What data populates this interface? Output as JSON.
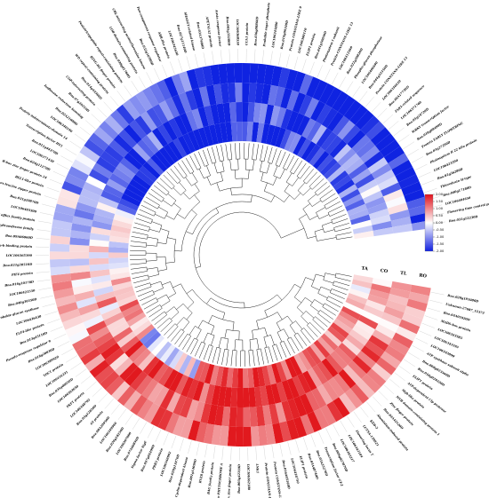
{
  "chart_data": {
    "type": "heatmap",
    "layout": "circular",
    "rings": [
      "TA",
      "CO",
      "TL",
      "RO"
    ],
    "color_scale": {
      "low": "#1020e0",
      "mid": "#ffffff",
      "high": "#e0101a",
      "ticks": [
        "2.00",
        "1.50",
        "1.00",
        "0.50",
        "0.00",
        "-0.50",
        "-1.00",
        "-1.50",
        "-2.00"
      ],
      "range": [
        -2,
        2
      ]
    },
    "genes": [
      "Bna.020g191080D",
      "Unknown-27687_15373",
      "Bna.04A01020D",
      "MADS-box protein",
      "LOC106343585",
      "LOC106343595",
      "LOC106343890",
      "ATP synthase subunit alpha",
      "Bna.008g023560D",
      "Bna.010g029220D",
      "ELIP1 protein",
      "ATP-dependent Clp protease",
      "Myb-like protein",
      "MYB domain-containing protein 1",
      "Zinc finger protein",
      "Bna.04A42120D",
      "Aluminium-induced protein",
      "KEB-2",
      "LUTSA-139921",
      "Flowering locus T",
      "LOC106342104",
      "LOC106343217",
      "Bna.009g027870D",
      "Transcription factor GT-2",
      "Bna.03A25270D",
      "Bna.03A48740D",
      "ELIP1 protein",
      "LOC106418750",
      "Bna.016A05160D",
      "Protein CONSTANS-LIKE 2",
      "Protein CONSTANS-LIKE 4",
      "LNK1",
      "LOC106362180",
      "Bna.003g42310D",
      "B-box zinc finger protein",
      "Protein PHYTOCHROME A",
      "BAG family protein",
      "RVE8 protein",
      "Bna.001g14090D",
      "Cyclin-dependent kinase",
      "Bna.029g13470D",
      "LOC106346902",
      "PRR5 protein",
      "Bna.047g04490D",
      "Sigma factor SigE",
      "Bna.07A00850D",
      "LOC106367000",
      "Bna.020g18250D",
      "LOC106349960",
      "Bna.08A20950D",
      "GI protein",
      "Bna.03g12850D",
      "LOC106348702",
      "FKF1 protein",
      "LOC106393650",
      "Bna.035g00950D",
      "LOC106416231",
      "TOC1 protein",
      "LOC106389920",
      "Bna.018g20830D",
      "Pseudo-response regulator 9",
      "Bna.013g43110D",
      "ELF4-like protein",
      "LOC106436430",
      "Probable glucan synthase",
      "Bna.040g30350D",
      "LOC106421550",
      "Bna.016g10170D",
      "PIF4 protein",
      "Bna.021g20510D",
      "LOC106365390",
      "Chlorophyll a-b binding protein",
      "Bna.09A06060D",
      "Glycosyltransferase family",
      "MATE efflux family protein",
      "LOC106403300",
      "Bna.031g29870D",
      "Homeobox-leucine zipper protein",
      "BEL1-like protein",
      "B-box zinc finger protein 24",
      "Bna.024g11270D",
      "LOC106371430",
      "Bna.011g44370D",
      "Transcription factor HY5",
      "Protein indeterminate-domain 14",
      "LOC106340190",
      "Bna.02A21080D",
      "Isoflavone reductase homolog",
      "Bna.07g20210D",
      "COP-interacting protein",
      "Bna.014g43360D",
      "WD repeat-containing protein",
      "RING-H2 finger protein",
      "Pentatricopeptide repeat-containing protein",
      "Bna.038g01760D",
      "LOB domain-containing protein",
      "CBL-interacting serine/threonine kinase",
      "Bna.032g16580D",
      "Two-component response regulator",
      "ARR-like protein",
      "LOC106345650",
      "Bna.027g11140D",
      "SHAGGY-related kinase",
      "Bna.03A37680D",
      "APETALA2 protein",
      "Auxin response factor",
      "Bna.005g33280D",
      "LOC106368550",
      "CCA1 protein",
      "Bna.036g08860D",
      "Probable sugar phosphate",
      "LOC106345880",
      "Bna.019g09340D",
      "Protein CONSTANS-LIKE 9",
      "LOC106380110",
      "ELIP1 protein",
      "Bna.041g10050D",
      "Photosystem I subunit",
      "Protein CONSTANS-LIKE 13",
      "LOC106412360",
      "Bna.022g20820D",
      "Phospho-glucan phosphatase",
      "LOC106406690",
      "Bna.044g32350D",
      "Protein CONSTANS-LIKE 15",
      "LOC106356610",
      "Bna.06A17730D",
      "FAR1-related sequence",
      "LOC106371760",
      "Bna.05g24720D",
      "WRKY transcription factor",
      "Bna.018g08490D",
      "Protein EARLY FLOWERING",
      "Bna.03g27290D",
      "Photosystem II 22 kDa protein",
      "LOC106423390",
      "Bna.02g36280D",
      "Thioredoxin H-type",
      "Bna.040g17180D",
      "LOC106404650",
      "Flowering time control protein",
      "Bna.031g12230D"
    ]
  }
}
